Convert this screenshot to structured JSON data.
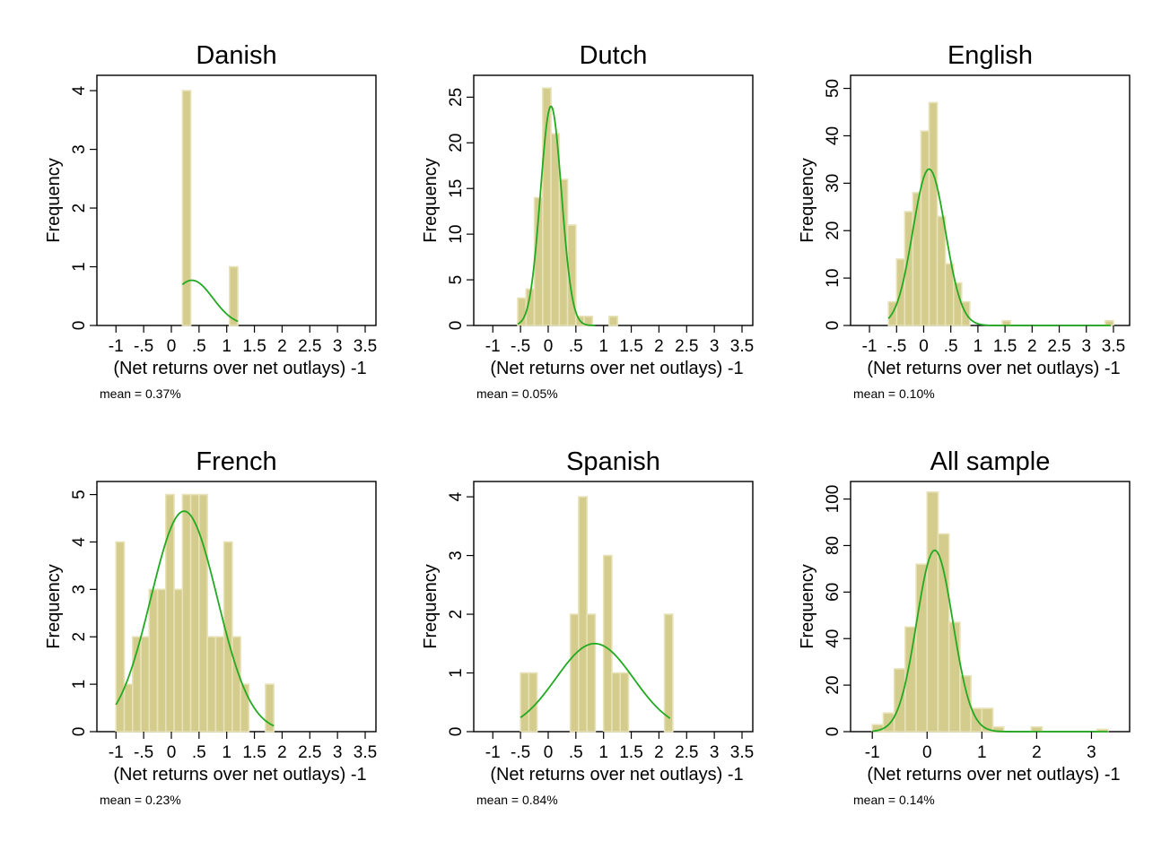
{
  "chart_data": [
    {
      "type": "bar",
      "title": "Danish",
      "xlabel": "(Net returns over net outlays) -1",
      "ylabel": "Frequency",
      "note": "mean = 0.37%",
      "xlim": [
        -1.15,
        3.5
      ],
      "ylim": [
        0,
        4.2
      ],
      "xticks": [
        -1,
        -0.5,
        0,
        0.5,
        1,
        1.5,
        2,
        2.5,
        3,
        3.5
      ],
      "xtick_labels": [
        "-1",
        "-.5",
        "0",
        ".5",
        "1",
        "1.5",
        "2",
        "2.5",
        "3",
        "3.5"
      ],
      "yticks": [
        0,
        1,
        2,
        3,
        4
      ],
      "ytick_labels": [
        "0",
        "1",
        "2",
        "3",
        "4"
      ],
      "bins": [
        [
          0.2,
          0.35,
          4
        ],
        [
          1.05,
          1.2,
          1
        ]
      ],
      "curve": {
        "mean": 0.37,
        "sd": 0.38,
        "peak": 0.77,
        "from": 0.2,
        "to": 1.2
      }
    },
    {
      "type": "bar",
      "title": "Dutch",
      "xlabel": "(Net returns over net outlays) -1",
      "ylabel": "Frequency",
      "note": "mean = 0.05%",
      "xlim": [
        -1.15,
        3.5
      ],
      "ylim": [
        0,
        27
      ],
      "xticks": [
        -1,
        -0.5,
        0,
        0.5,
        1,
        1.5,
        2,
        2.5,
        3,
        3.5
      ],
      "xtick_labels": [
        "-1",
        "-.5",
        "0",
        ".5",
        "1",
        "1.5",
        "2",
        "2.5",
        "3",
        "3.5"
      ],
      "yticks": [
        0,
        5,
        10,
        15,
        20,
        25
      ],
      "ytick_labels": [
        "0",
        "5",
        "10",
        "15",
        "20",
        "25"
      ],
      "bins": [
        [
          -0.55,
          -0.4,
          3
        ],
        [
          -0.4,
          -0.25,
          4
        ],
        [
          -0.25,
          -0.1,
          14
        ],
        [
          -0.1,
          0.05,
          26
        ],
        [
          0.05,
          0.2,
          21
        ],
        [
          0.2,
          0.35,
          16
        ],
        [
          0.35,
          0.5,
          11
        ],
        [
          0.5,
          0.65,
          1
        ],
        [
          0.65,
          0.8,
          1
        ],
        [
          1.1,
          1.25,
          1
        ]
      ],
      "curve": {
        "mean": 0.05,
        "sd": 0.19,
        "peak": 24,
        "from": -0.55,
        "to": 0.85
      }
    },
    {
      "type": "bar",
      "title": "English",
      "xlabel": "(Net returns over net outlays) -1",
      "ylabel": "Frequency",
      "note": "mean = 0.10%",
      "xlim": [
        -1.15,
        3.6
      ],
      "ylim": [
        0,
        52
      ],
      "xticks": [
        -1,
        -0.5,
        0,
        0.5,
        1,
        1.5,
        2,
        2.5,
        3,
        3.5
      ],
      "xtick_labels": [
        "-1",
        "-.5",
        "0",
        ".5",
        "1",
        "1.5",
        "2",
        "2.5",
        "3",
        "3.5"
      ],
      "yticks": [
        0,
        10,
        20,
        30,
        40,
        50
      ],
      "ytick_labels": [
        "0",
        "10",
        "20",
        "30",
        "40",
        "50"
      ],
      "bins": [
        [
          -0.65,
          -0.5,
          5
        ],
        [
          -0.5,
          -0.35,
          14
        ],
        [
          -0.35,
          -0.2,
          24
        ],
        [
          -0.2,
          -0.05,
          28
        ],
        [
          -0.05,
          0.1,
          41
        ],
        [
          0.1,
          0.25,
          47
        ],
        [
          0.25,
          0.4,
          23
        ],
        [
          0.4,
          0.55,
          13
        ],
        [
          0.55,
          0.7,
          9
        ],
        [
          0.7,
          0.85,
          5
        ],
        [
          1.45,
          1.6,
          1
        ],
        [
          3.35,
          3.5,
          1
        ]
      ],
      "curve": {
        "mean": 0.1,
        "sd": 0.3,
        "peak": 33,
        "from": -0.65,
        "to": 3.45
      }
    },
    {
      "type": "bar",
      "title": "French",
      "xlabel": "(Net returns over net outlays) -1",
      "ylabel": "Frequency",
      "note": "mean = 0.23%",
      "xlim": [
        -1.15,
        3.5
      ],
      "ylim": [
        0,
        5.2
      ],
      "xticks": [
        -1,
        -0.5,
        0,
        0.5,
        1,
        1.5,
        2,
        2.5,
        3,
        3.5
      ],
      "xtick_labels": [
        "-1",
        "-.5",
        "0",
        ".5",
        "1",
        "1.5",
        "2",
        "2.5",
        "3",
        "3.5"
      ],
      "yticks": [
        0,
        1,
        2,
        3,
        4,
        5
      ],
      "ytick_labels": [
        "0",
        "1",
        "2",
        "3",
        "4",
        "5"
      ],
      "bins": [
        [
          -1.0,
          -0.85,
          4
        ],
        [
          -0.85,
          -0.7,
          1
        ],
        [
          -0.7,
          -0.55,
          2
        ],
        [
          -0.55,
          -0.4,
          2
        ],
        [
          -0.4,
          -0.25,
          3
        ],
        [
          -0.25,
          -0.1,
          3
        ],
        [
          -0.1,
          0.05,
          5
        ],
        [
          0.05,
          0.2,
          3
        ],
        [
          0.2,
          0.35,
          5
        ],
        [
          0.35,
          0.5,
          5
        ],
        [
          0.5,
          0.65,
          5
        ],
        [
          0.65,
          0.8,
          2
        ],
        [
          0.8,
          0.95,
          2
        ],
        [
          0.95,
          1.1,
          4
        ],
        [
          1.1,
          1.25,
          2
        ],
        [
          1.25,
          1.4,
          1
        ],
        [
          1.7,
          1.85,
          1
        ]
      ],
      "curve": {
        "mean": 0.23,
        "sd": 0.6,
        "peak": 4.65,
        "from": -1.0,
        "to": 1.85
      }
    },
    {
      "type": "bar",
      "title": "Spanish",
      "xlabel": "(Net returns over net outlays) -1",
      "ylabel": "Frequency",
      "note": "mean = 0.84%",
      "xlim": [
        -1.15,
        3.5
      ],
      "ylim": [
        0,
        4.2
      ],
      "xticks": [
        -1,
        -0.5,
        0,
        0.5,
        1,
        1.5,
        2,
        2.5,
        3,
        3.5
      ],
      "xtick_labels": [
        "-1",
        "-.5",
        "0",
        ".5",
        "1",
        "1.5",
        "2",
        "2.5",
        "3",
        "3.5"
      ],
      "yticks": [
        0,
        1,
        2,
        3,
        4
      ],
      "ytick_labels": [
        "0",
        "1",
        "2",
        "3",
        "4"
      ],
      "bins": [
        [
          -0.5,
          -0.35,
          1
        ],
        [
          -0.35,
          -0.2,
          1
        ],
        [
          0.4,
          0.55,
          2
        ],
        [
          0.55,
          0.7,
          4
        ],
        [
          0.7,
          0.85,
          2
        ],
        [
          1.0,
          1.15,
          3
        ],
        [
          1.15,
          1.3,
          1
        ],
        [
          1.3,
          1.45,
          1
        ],
        [
          2.1,
          2.25,
          2
        ]
      ],
      "curve": {
        "mean": 0.84,
        "sd": 0.7,
        "peak": 1.5,
        "from": -0.5,
        "to": 2.2
      }
    },
    {
      "type": "bar",
      "title": "All sample",
      "xlabel": "(Net returns over net outlays) -1",
      "ylabel": "Frequency",
      "note": "mean = 0.14%",
      "xlim": [
        -1.2,
        3.5
      ],
      "ylim": [
        0,
        106
      ],
      "xticks": [
        -1,
        0,
        1,
        2,
        3
      ],
      "xtick_labels": [
        "-1",
        "0",
        "1",
        "2",
        "3"
      ],
      "yticks": [
        0,
        20,
        40,
        60,
        80,
        100
      ],
      "ytick_labels": [
        "0",
        "20",
        "40",
        "60",
        "80",
        "100"
      ],
      "bins": [
        [
          -1.0,
          -0.8,
          3
        ],
        [
          -0.8,
          -0.6,
          8
        ],
        [
          -0.6,
          -0.4,
          27
        ],
        [
          -0.4,
          -0.2,
          45
        ],
        [
          -0.2,
          0.0,
          72
        ],
        [
          0.0,
          0.2,
          103
        ],
        [
          0.2,
          0.4,
          85
        ],
        [
          0.4,
          0.6,
          47
        ],
        [
          0.6,
          0.8,
          24
        ],
        [
          0.8,
          1.0,
          10
        ],
        [
          1.0,
          1.2,
          10
        ],
        [
          1.2,
          1.4,
          2
        ],
        [
          1.9,
          2.1,
          2
        ],
        [
          3.1,
          3.3,
          1
        ]
      ],
      "curve": {
        "mean": 0.14,
        "sd": 0.33,
        "peak": 78,
        "from": -1.0,
        "to": 3.3
      }
    }
  ]
}
